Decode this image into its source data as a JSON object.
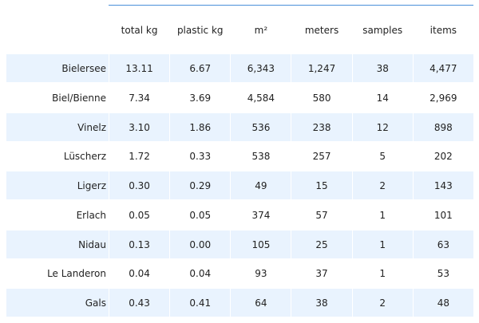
{
  "table": {
    "columns": [
      "total kg",
      "plastic kg",
      "m²",
      "meters",
      "samples",
      "items"
    ],
    "rows": [
      {
        "label": "Bielersee",
        "values": [
          "13.11",
          "6.67",
          "6,343",
          "1,247",
          "38",
          "4,477"
        ]
      },
      {
        "label": "Biel/Bienne",
        "values": [
          "7.34",
          "3.69",
          "4,584",
          "580",
          "14",
          "2,969"
        ]
      },
      {
        "label": "Vinelz",
        "values": [
          "3.10",
          "1.86",
          "536",
          "238",
          "12",
          "898"
        ]
      },
      {
        "label": "Lüscherz",
        "values": [
          "1.72",
          "0.33",
          "538",
          "257",
          "5",
          "202"
        ]
      },
      {
        "label": "Ligerz",
        "values": [
          "0.30",
          "0.29",
          "49",
          "15",
          "2",
          "143"
        ]
      },
      {
        "label": "Erlach",
        "values": [
          "0.05",
          "0.05",
          "374",
          "57",
          "1",
          "101"
        ]
      },
      {
        "label": "Nidau",
        "values": [
          "0.13",
          "0.00",
          "105",
          "25",
          "1",
          "63"
        ]
      },
      {
        "label": "Le Landeron",
        "values": [
          "0.04",
          "0.04",
          "93",
          "37",
          "1",
          "53"
        ]
      },
      {
        "label": "Gals",
        "values": [
          "0.43",
          "0.41",
          "64",
          "38",
          "2",
          "48"
        ]
      }
    ]
  },
  "colors": {
    "stripe": "#e9f3fe",
    "rule": "#4a90d9",
    "text": "#222222"
  }
}
